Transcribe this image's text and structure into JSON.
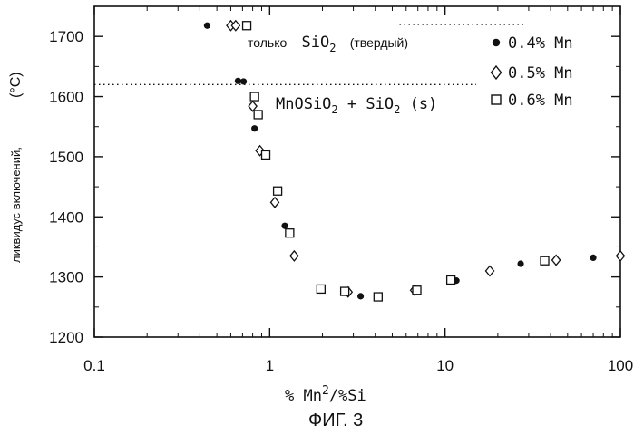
{
  "chart_data": {
    "type": "scatter",
    "title": "",
    "caption": "ФИГ. 3",
    "xlabel_main": "% Mn",
    "xlabel_sup": "2",
    "xlabel_tail": "/%Si",
    "ylabel": "ликвидус включений,",
    "ylabel_unit": "(°C)",
    "xscale": "log",
    "xlim": [
      0.1,
      100
    ],
    "ylim": [
      1200,
      1750
    ],
    "x_ticks": [
      0.1,
      1,
      10,
      100
    ],
    "x_tick_labels": [
      "0.1",
      "1",
      "10",
      "100"
    ],
    "y_ticks": [
      1200,
      1300,
      1400,
      1500,
      1600,
      1700
    ],
    "y_tick_labels": [
      "1200",
      "1300",
      "1400",
      "1500",
      "1600",
      "1700"
    ],
    "grid": false,
    "legend_position": "top-right",
    "series": [
      {
        "name": "0.4% Mn",
        "marker": "filled-circle",
        "points": [
          [
            0.44,
            1718
          ],
          [
            0.66,
            1626
          ],
          [
            0.71,
            1625
          ],
          [
            0.82,
            1547
          ],
          [
            1.22,
            1385
          ],
          [
            3.3,
            1268
          ],
          [
            7.0,
            1279
          ],
          [
            11.6,
            1294
          ],
          [
            27,
            1322
          ],
          [
            70,
            1332
          ]
        ]
      },
      {
        "name": "0.5% Mn",
        "marker": "open-diamond",
        "points": [
          [
            0.6,
            1718
          ],
          [
            0.64,
            1718
          ],
          [
            0.8,
            1584
          ],
          [
            0.88,
            1510
          ],
          [
            1.07,
            1424
          ],
          [
            1.38,
            1335
          ],
          [
            2.8,
            1275
          ],
          [
            6.7,
            1278
          ],
          [
            18,
            1310
          ],
          [
            43,
            1328
          ],
          [
            108,
            1335
          ]
        ]
      },
      {
        "name": "0.6% Mn",
        "marker": "open-square",
        "points": [
          [
            0.74,
            1718
          ],
          [
            0.82,
            1600
          ],
          [
            0.86,
            1570
          ],
          [
            0.95,
            1503
          ],
          [
            1.11,
            1443
          ],
          [
            1.3,
            1373
          ],
          [
            1.96,
            1280
          ],
          [
            2.68,
            1276
          ],
          [
            4.15,
            1267
          ],
          [
            6.9,
            1278
          ],
          [
            10.8,
            1295
          ],
          [
            37,
            1327
          ]
        ]
      }
    ],
    "boundary_lines": [
      {
        "x_from": 5.5,
        "x_to": 28,
        "y": 1720
      },
      {
        "x_from": 0.1,
        "x_to": 15,
        "y": 1620
      }
    ],
    "annotations": [
      {
        "text_ru": "только",
        "text_chem": "SiO",
        "sub": "2",
        "tail": "(твердый)"
      },
      {
        "text": "MnOSiO",
        "sub1": "2",
        "mid": " + SiO",
        "sub2": "2",
        "tail": "(s)"
      }
    ]
  }
}
